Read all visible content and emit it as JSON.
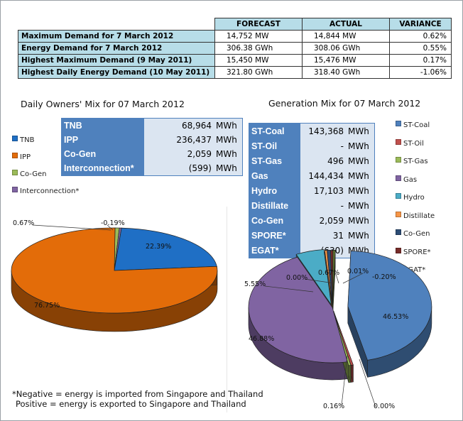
{
  "demand_table": {
    "headers": [
      "",
      "FORECAST",
      "ACTUAL",
      "VARIANCE"
    ],
    "rows": [
      {
        "label": "Maximum Demand for 7 March 2012",
        "forecast": "14,752  MW",
        "actual": "14,844  MW",
        "variance": "0.62%"
      },
      {
        "label": "Energy Demand for 7 March 2012",
        "forecast": "306.38  GWh",
        "actual": "308.06  GWh",
        "variance": "0.55%"
      },
      {
        "label": "Highest Maximum Demand (9 May 2011)",
        "forecast": "15,450  MW",
        "actual": "15,476  MW",
        "variance": "0.17%"
      },
      {
        "label": "Highest Daily Energy Demand (10 May 2011)",
        "forecast": "321.80  GWh",
        "actual": "318.40  GWh",
        "variance": "-1.06%"
      }
    ]
  },
  "owners_table": [
    {
      "name": "TNB",
      "value": "68,964",
      "unit": "MWh"
    },
    {
      "name": "IPP",
      "value": "236,437",
      "unit": "MWh"
    },
    {
      "name": "Co-Gen",
      "value": "2,059",
      "unit": "MWh"
    },
    {
      "name": "Interconnection*",
      "value": "(599)",
      "unit": "MWh"
    }
  ],
  "generation_table": [
    {
      "name": "ST-Coal",
      "value": "143,368",
      "unit": "MWh"
    },
    {
      "name": "ST-Oil",
      "value": "-",
      "unit": "MWh"
    },
    {
      "name": "ST-Gas",
      "value": "496",
      "unit": "MWh"
    },
    {
      "name": "Gas",
      "value": "144,434",
      "unit": "MWh"
    },
    {
      "name": "Hydro",
      "value": "17,103",
      "unit": "MWh"
    },
    {
      "name": "Distillate",
      "value": "-",
      "unit": "MWh"
    },
    {
      "name": "Co-Gen",
      "value": "2,059",
      "unit": "MWh"
    },
    {
      "name": "SPORE*",
      "value": "31",
      "unit": "MWh"
    },
    {
      "name": "EGAT*",
      "value": "(630)",
      "unit": "MWh"
    }
  ],
  "notes": {
    "line1": "*Negative = energy is imported from Singapore and Thailand",
    "line2": "Positive = energy is exported to Singapore and Thailand"
  },
  "chart_data": [
    {
      "type": "pie",
      "title": "Daily Owners' Mix for 07 March 2012",
      "legend_position": "left",
      "slices": [
        {
          "name": "TNB",
          "value": 22.39,
          "label": "22.39%",
          "color": "#1f6fc5"
        },
        {
          "name": "IPP",
          "value": 76.75,
          "label": "76.75%",
          "color": "#e36c09"
        },
        {
          "name": "Co-Gen",
          "value": 0.67,
          "label": "0.67%",
          "color": "#9bbb59"
        },
        {
          "name": "Interconnection*",
          "value": -0.19,
          "label": "-0.19%",
          "color": "#8064a2"
        }
      ]
    },
    {
      "type": "pie",
      "title": "Generation Mix for 07 March 2012",
      "legend_position": "right",
      "slices": [
        {
          "name": "ST-Coal",
          "value": 46.53,
          "label": "46.53%",
          "color": "#4f81bd"
        },
        {
          "name": "ST-Oil",
          "value": 0.0,
          "label": "0.00%",
          "color": "#c0504d"
        },
        {
          "name": "ST-Gas",
          "value": 0.16,
          "label": "0.16%",
          "color": "#9bbb59"
        },
        {
          "name": "Gas",
          "value": 46.88,
          "label": "46.88%",
          "color": "#8064a2"
        },
        {
          "name": "Hydro",
          "value": 5.55,
          "label": "5.55%",
          "color": "#4bacc6"
        },
        {
          "name": "Distillate",
          "value": 0.0,
          "label": "0.00%",
          "color": "#f79646"
        },
        {
          "name": "Co-Gen",
          "value": 0.67,
          "label": "0.67%",
          "color": "#2c4d75"
        },
        {
          "name": "SPORE*",
          "value": 0.01,
          "label": "0.01%",
          "color": "#772c2a"
        },
        {
          "name": "EGAT*",
          "value": -0.2,
          "label": "-0.20%",
          "color": "#5f7530"
        }
      ]
    }
  ]
}
